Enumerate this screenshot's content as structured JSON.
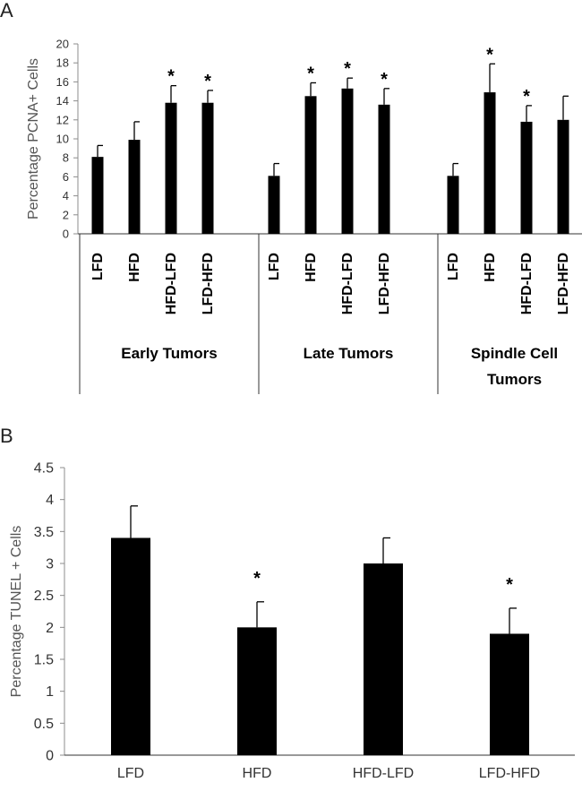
{
  "chart_data": [
    {
      "panel": "A",
      "type": "bar",
      "ylabel": "Percentage PCNA+ Cells",
      "ylim": [
        0,
        20
      ],
      "yticks": [
        0,
        2,
        4,
        6,
        8,
        10,
        12,
        14,
        16,
        18,
        20
      ],
      "groups": [
        {
          "name": "Early Tumors",
          "categories": [
            "LFD",
            "HFD",
            "HFD-LFD",
            "LFD-HFD"
          ],
          "values": [
            8.1,
            9.9,
            13.8,
            13.8
          ],
          "errors": [
            1.2,
            1.9,
            1.8,
            1.3
          ],
          "significant": [
            false,
            false,
            true,
            true
          ]
        },
        {
          "name": "Late Tumors",
          "categories": [
            "LFD",
            "HFD",
            "HFD-LFD",
            "LFD-HFD"
          ],
          "values": [
            6.1,
            14.5,
            15.3,
            13.6
          ],
          "errors": [
            1.3,
            1.4,
            1.1,
            1.7
          ],
          "significant": [
            false,
            true,
            true,
            true
          ]
        },
        {
          "name": "Spindle Cell Tumors",
          "name_lines": [
            "Spindle Cell",
            "Tumors"
          ],
          "categories": [
            "LFD",
            "HFD",
            "HFD-LFD",
            "LFD-HFD"
          ],
          "values": [
            6.1,
            14.9,
            11.8,
            12.0
          ],
          "errors": [
            1.3,
            3.0,
            1.7,
            2.5
          ],
          "significant": [
            false,
            true,
            true,
            false
          ]
        }
      ],
      "significance_marker": "*"
    },
    {
      "panel": "B",
      "type": "bar",
      "ylabel": "Percentage TUNEL + Cells",
      "ylim": [
        0,
        4.5
      ],
      "yticks": [
        "0",
        "0.5",
        "1",
        "1.5",
        "2",
        "2.5",
        "3",
        "3.5",
        "4",
        "4.5"
      ],
      "categories": [
        "LFD",
        "HFD",
        "HFD-LFD",
        "LFD-HFD"
      ],
      "values": [
        3.4,
        2.0,
        3.0,
        1.9
      ],
      "errors": [
        0.5,
        0.4,
        0.4,
        0.4
      ],
      "significant": [
        false,
        true,
        false,
        true
      ],
      "significance_marker": "*"
    }
  ]
}
